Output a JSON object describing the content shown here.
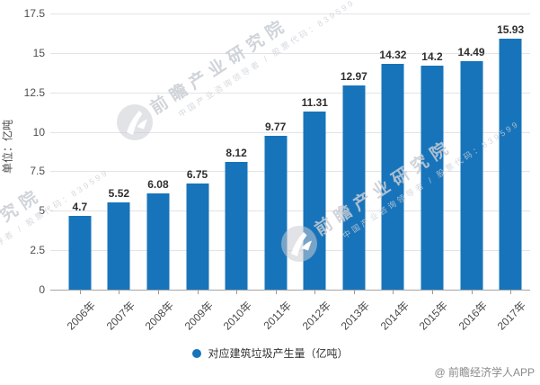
{
  "chart_data": {
    "type": "bar",
    "title": "",
    "categories": [
      "2006年",
      "2007年",
      "2008年",
      "2009年",
      "2010年",
      "2011年",
      "2012年",
      "2013年",
      "2014年",
      "2015年",
      "2016年",
      "2017年"
    ],
    "series": [
      {
        "name": "对应建筑垃圾产生量（亿吨）",
        "values": [
          4.7,
          5.52,
          6.08,
          6.75,
          8.12,
          9.77,
          11.31,
          12.97,
          14.32,
          14.2,
          14.49,
          15.93
        ]
      }
    ],
    "value_labels": [
      "4.7",
      "5.52",
      "6.08",
      "6.75",
      "8.12",
      "9.77",
      "11.31",
      "12.97",
      "14.32",
      "14.2",
      "14.49",
      "15.93"
    ],
    "xlabel": "",
    "ylabel": "单位：亿吨",
    "ylim": [
      0,
      17.5
    ],
    "yticks": [
      17.5,
      15,
      12.5,
      10,
      7.5,
      5,
      2.5,
      0
    ],
    "ytick_labels": [
      "17.5",
      "15",
      "12.5",
      "10",
      "7.5",
      "5",
      "2.5",
      "0"
    ],
    "grid": true,
    "legend_position": "bottom-center",
    "bar_color": "#1774ba"
  },
  "legend": {
    "marker": "circle",
    "label": "对应建筑垃圾产生量（亿吨）"
  },
  "watermark": {
    "brand": "前瞻产业研究院",
    "subtitle": "中国产业咨询领导者 / 股票代码：839599"
  },
  "footer": {
    "credit": "@ 前瞻经济学人APP"
  }
}
